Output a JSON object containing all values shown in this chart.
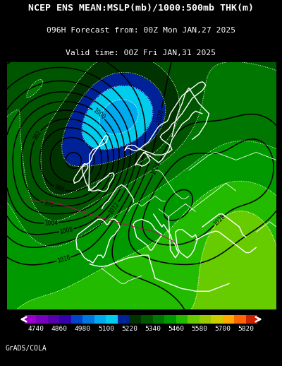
{
  "title_line1": "NCEP ENS MEAN:MSLP(mb)/1000:500mb THK(m)",
  "title_line2": "096H Forecast from: 00Z Mon JAN,27 2025",
  "title_line3": "Valid time: 00Z Fri JAN,31 2025",
  "colorbar_values": [
    4740,
    4860,
    4980,
    5100,
    5220,
    5340,
    5460,
    5580,
    5700,
    5820
  ],
  "cb_colors": [
    "#9900CC",
    "#7700BB",
    "#5500AA",
    "#3300AA",
    "#0044CC",
    "#0077DD",
    "#00AAEE",
    "#00CCEE",
    "#002299",
    "#003300",
    "#005500",
    "#007700",
    "#009900",
    "#22BB00",
    "#66CC00",
    "#99CC00",
    "#CCCC00",
    "#FFAA00",
    "#FF6600",
    "#CC2200"
  ],
  "background_color": "#000000",
  "credit": "GrADS/COLA",
  "figsize": [
    4.0,
    5.18
  ],
  "dpi": 100,
  "map_xlim": [
    -30,
    50
  ],
  "map_ylim": [
    27,
    75
  ]
}
